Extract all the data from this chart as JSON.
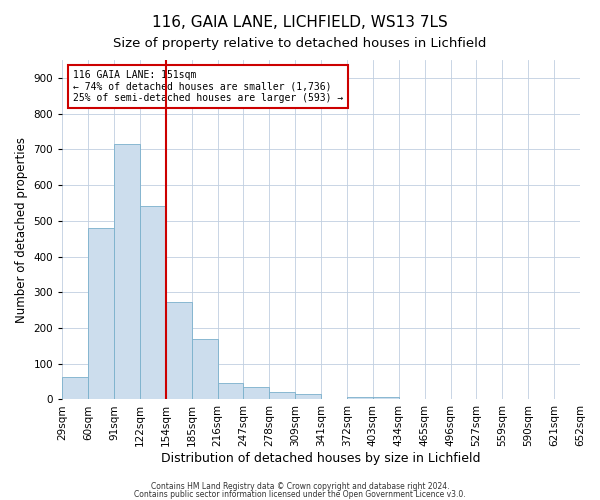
{
  "title1": "116, GAIA LANE, LICHFIELD, WS13 7LS",
  "title2": "Size of property relative to detached houses in Lichfield",
  "xlabel": "Distribution of detached houses by size in Lichfield",
  "ylabel": "Number of detached properties",
  "footnote1": "Contains HM Land Registry data © Crown copyright and database right 2024.",
  "footnote2": "Contains public sector information licensed under the Open Government Licence v3.0.",
  "bar_heights": [
    62,
    480,
    716,
    541,
    272,
    170,
    47,
    35,
    20,
    14,
    0,
    8,
    8,
    0,
    0,
    0,
    0,
    0,
    0,
    0
  ],
  "tick_labels": [
    "29sqm",
    "60sqm",
    "91sqm",
    "122sqm",
    "154sqm",
    "185sqm",
    "216sqm",
    "247sqm",
    "278sqm",
    "309sqm",
    "341sqm",
    "372sqm",
    "403sqm",
    "434sqm",
    "465sqm",
    "496sqm",
    "527sqm",
    "559sqm",
    "590sqm",
    "621sqm",
    "652sqm"
  ],
  "bar_color": "#ccdded",
  "bar_edge_color": "#7ab0cc",
  "vline_x": 4,
  "vline_color": "#cc0000",
  "annotation_text": "116 GAIA LANE: 151sqm\n← 74% of detached houses are smaller (1,736)\n25% of semi-detached houses are larger (593) →",
  "annotation_box_color": "#cc0000",
  "ylim": [
    0,
    950
  ],
  "yticks": [
    0,
    100,
    200,
    300,
    400,
    500,
    600,
    700,
    800,
    900
  ],
  "grid_color": "#c0cfe0",
  "bg_color": "#ffffff",
  "title1_fontsize": 11,
  "title2_fontsize": 9.5,
  "xlabel_fontsize": 9,
  "ylabel_fontsize": 8.5,
  "tick_fontsize": 7.5,
  "footnote_fontsize": 5.5
}
